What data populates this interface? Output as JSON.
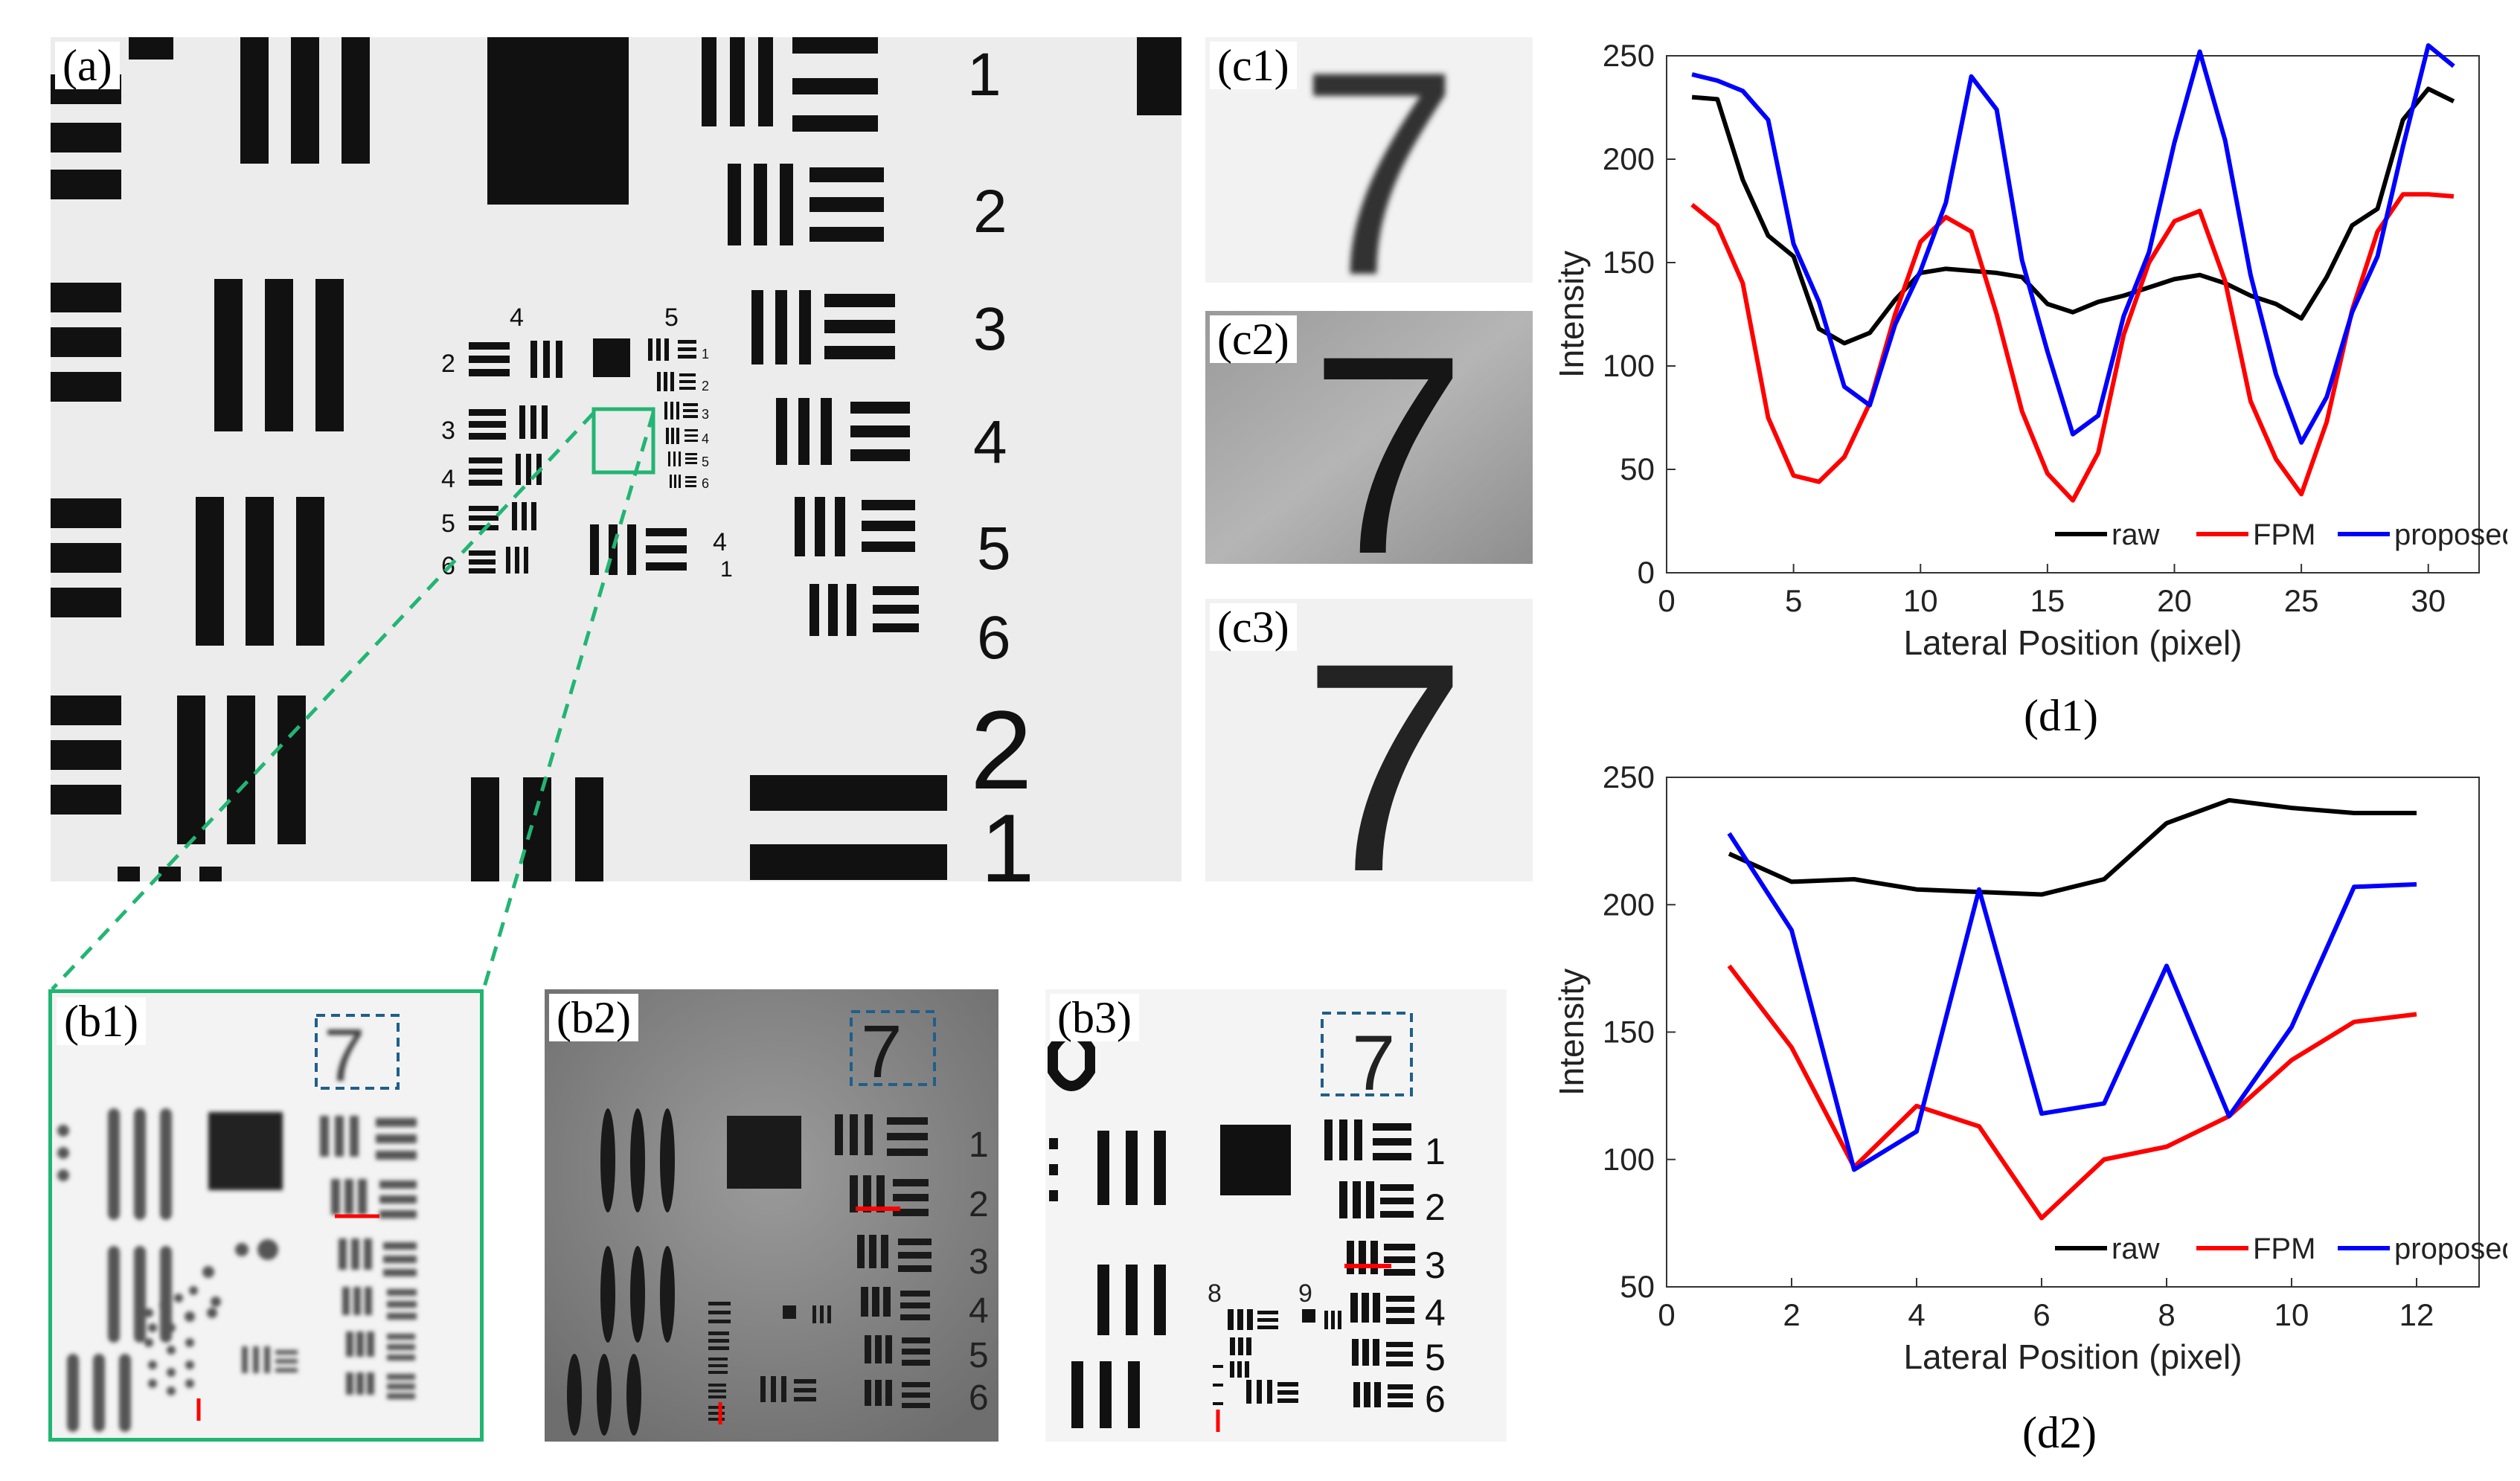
{
  "panels": {
    "a": {
      "label": "(a)",
      "group_numbers": [
        "1",
        "2",
        "3",
        "4",
        "5",
        "6",
        "2",
        "1"
      ],
      "center_groups": [
        "4",
        "5"
      ],
      "center_elements_left": [
        "2",
        "3",
        "4",
        "5",
        "6"
      ],
      "center_elements_right": [
        "1",
        "2",
        "3",
        "4",
        "5",
        "6"
      ],
      "center_small": [
        "4",
        "1"
      ]
    },
    "b1": {
      "label": "(b1)",
      "digit": "7"
    },
    "b2": {
      "label": "(b2)",
      "digit": "7",
      "side_numbers": [
        "1",
        "2",
        "3",
        "4",
        "5",
        "6"
      ]
    },
    "b3": {
      "label": "(b3)",
      "digit": "7",
      "side_numbers": [
        "1",
        "2",
        "3",
        "4",
        "5",
        "6"
      ],
      "group_numbers": [
        "8",
        "9"
      ]
    },
    "c1": {
      "label": "(c1)",
      "digit": "7"
    },
    "c2": {
      "label": "(c2)",
      "digit": "7"
    },
    "c3": {
      "label": "(c3)",
      "digit": "7"
    }
  },
  "colors": {
    "raw": "#000000",
    "FPM": "#ff0000",
    "proposed": "#0000ff",
    "zoom_box": "#22b573",
    "dash_box": "#1f5f8b",
    "marker": "#ff0000"
  },
  "chart_data": [
    {
      "type": "line",
      "caption": "(d1)",
      "xlabel": "Lateral Position (pixel)",
      "ylabel": "Intensity",
      "xlim": [
        0,
        32
      ],
      "ylim": [
        0,
        250
      ],
      "xticks": [
        0,
        5,
        10,
        15,
        20,
        25,
        30
      ],
      "yticks": [
        0,
        50,
        100,
        150,
        200,
        250
      ],
      "legend_position": "bottom-right",
      "x": [
        1,
        2,
        3,
        4,
        5,
        6,
        7,
        8,
        9,
        10,
        11,
        12,
        13,
        14,
        15,
        16,
        17,
        18,
        19,
        20,
        21,
        22,
        23,
        24,
        25,
        26,
        27,
        28,
        29,
        30,
        31
      ],
      "series": [
        {
          "name": "raw",
          "values": [
            230,
            229,
            190,
            163,
            153,
            118,
            111,
            116,
            132,
            145,
            147,
            146,
            145,
            143,
            130,
            126,
            131,
            134,
            138,
            142,
            144,
            140,
            134,
            130,
            123,
            143,
            168,
            176,
            219,
            234,
            228
          ]
        },
        {
          "name": "FPM",
          "values": [
            178,
            168,
            140,
            75,
            47,
            44,
            56,
            82,
            125,
            160,
            172,
            165,
            125,
            78,
            48,
            35,
            58,
            115,
            150,
            170,
            175,
            141,
            83,
            55,
            38,
            73,
            127,
            165,
            183,
            183,
            182
          ]
        },
        {
          "name": "proposed",
          "values": [
            241,
            238,
            233,
            219,
            159,
            131,
            90,
            81,
            120,
            146,
            179,
            240,
            224,
            151,
            107,
            67,
            76,
            124,
            155,
            208,
            252,
            209,
            144,
            96,
            63,
            85,
            126,
            153,
            206,
            255,
            245
          ]
        }
      ]
    },
    {
      "type": "line",
      "caption": "(d2)",
      "xlabel": "Lateral Position (pixel)",
      "ylabel": "Intensity",
      "xlim": [
        0,
        13
      ],
      "ylim": [
        50,
        250
      ],
      "xticks": [
        0,
        2,
        4,
        6,
        8,
        10,
        12
      ],
      "yticks": [
        50,
        100,
        150,
        200,
        250
      ],
      "legend_position": "bottom-right",
      "x": [
        1,
        2,
        3,
        4,
        5,
        6,
        7,
        8,
        9,
        10,
        11,
        12
      ],
      "series": [
        {
          "name": "raw",
          "values": [
            220,
            209,
            210,
            206,
            205,
            204,
            210,
            232,
            241,
            238,
            236,
            236
          ]
        },
        {
          "name": "FPM",
          "values": [
            176,
            144,
            97,
            121,
            113,
            77,
            100,
            105,
            117,
            139,
            154,
            157
          ]
        },
        {
          "name": "proposed",
          "values": [
            228,
            190,
            96,
            111,
            206,
            118,
            122,
            176,
            117,
            152,
            207,
            208
          ]
        }
      ]
    }
  ]
}
